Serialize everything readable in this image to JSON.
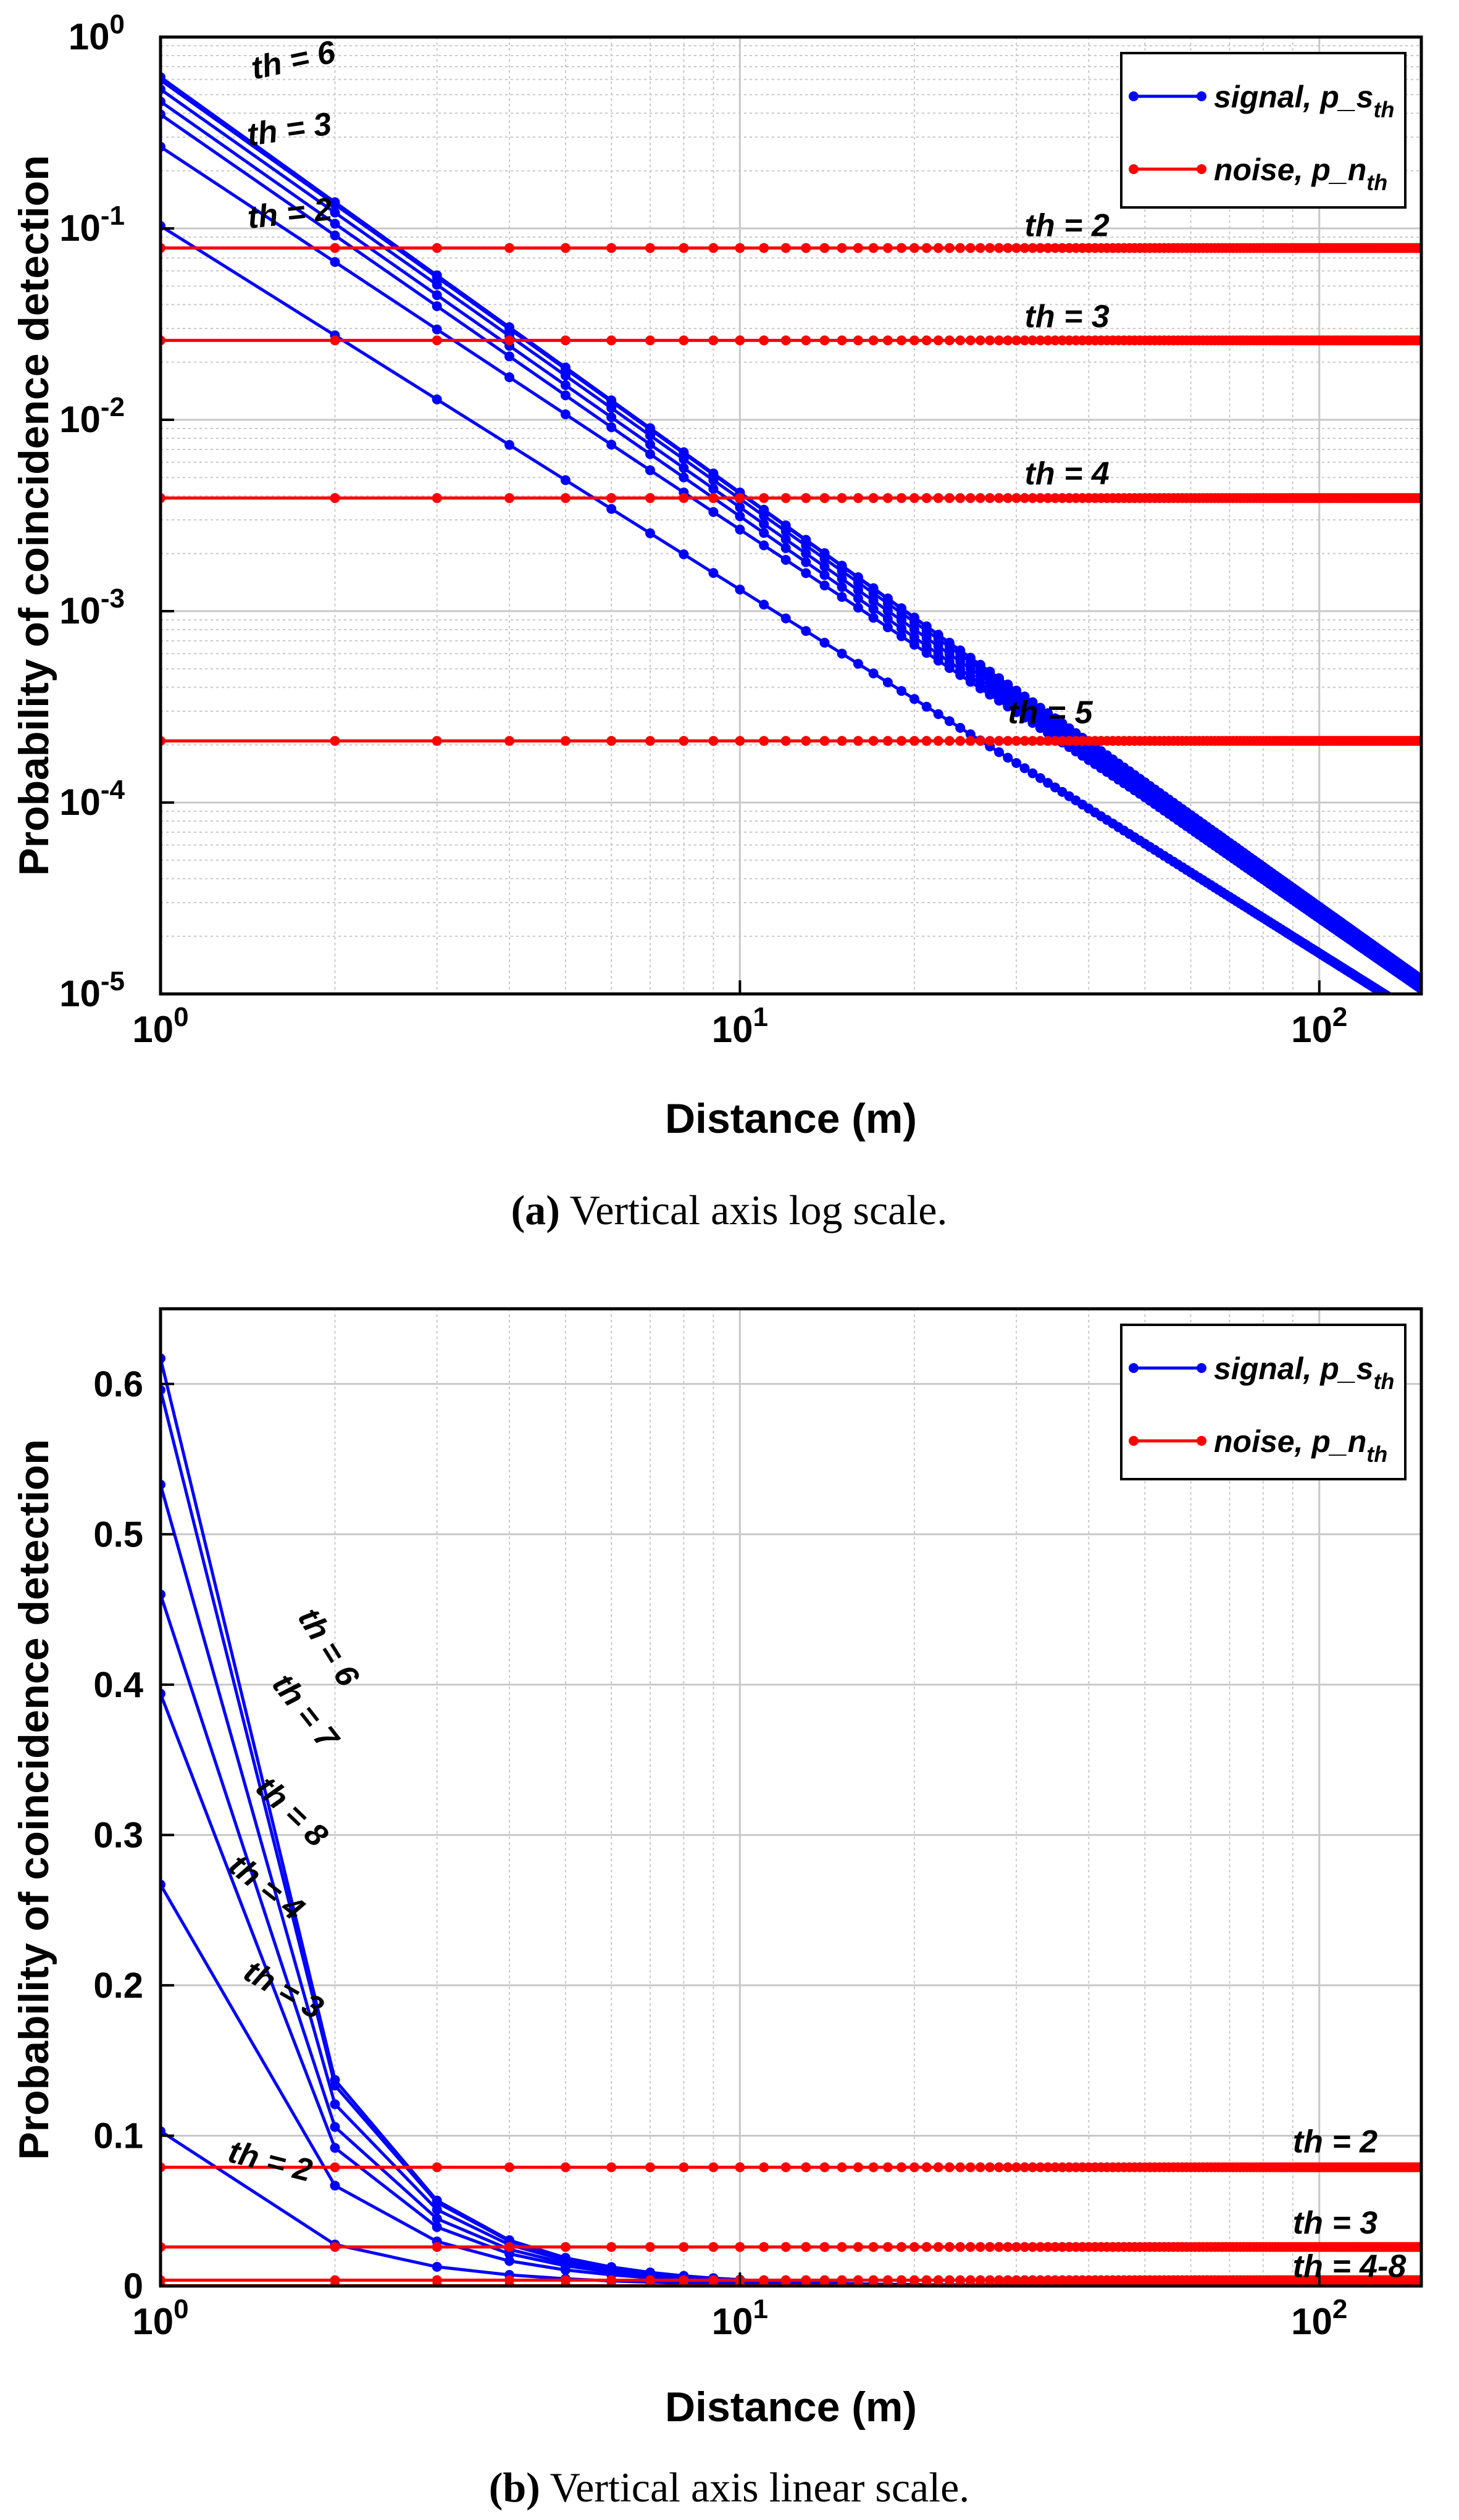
{
  "colors": {
    "signal": "#0000ff",
    "noise": "#ff0000",
    "grid": "#c8c8c8",
    "axis": "#000000"
  },
  "chart_data": [
    {
      "id": "a",
      "type": "line",
      "xscale": "log",
      "yscale": "log",
      "xlim": [
        1,
        150
      ],
      "ylim": [
        1e-05,
        1
      ],
      "xlabel": "Distance (m)",
      "ylabel": "Probability of coincidence detection",
      "xticks": [
        {
          "base": "10",
          "exp": "0",
          "v": 1
        },
        {
          "base": "10",
          "exp": "1",
          "v": 10
        },
        {
          "base": "10",
          "exp": "2",
          "v": 100
        }
      ],
      "yticks": [
        {
          "base": "10",
          "exp": "0",
          "v": 1
        },
        {
          "base": "10",
          "exp": "-1",
          "v": 0.1
        },
        {
          "base": "10",
          "exp": "-2",
          "v": 0.01
        },
        {
          "base": "10",
          "exp": "-3",
          "v": 0.001
        },
        {
          "base": "10",
          "exp": "-4",
          "v": 0.0001
        },
        {
          "base": "10",
          "exp": "-5",
          "v": 1e-05
        }
      ],
      "grid": true,
      "legend": {
        "position": "top-right",
        "entries": [
          {
            "kind": "signal",
            "text": "signal, p_s",
            "sub": "th"
          },
          {
            "kind": "noise",
            "text": "noise, p_n",
            "sub": "th"
          }
        ]
      },
      "series": [
        {
          "name": "signal th = 2",
          "kind": "signal",
          "th": 2,
          "p1": 0.103,
          "exp": 1.9
        },
        {
          "name": "signal th = 3",
          "kind": "signal",
          "th": 3,
          "p1": 0.267,
          "exp": 2.0
        },
        {
          "name": "signal th = 4",
          "kind": "signal",
          "th": 4,
          "p1": 0.394,
          "exp": 2.1
        },
        {
          "name": "signal th = 8",
          "kind": "signal",
          "th": 8,
          "p1": 0.46,
          "exp": 2.12
        },
        {
          "name": "signal th = 7",
          "kind": "signal",
          "th": 7,
          "p1": 0.533,
          "exp": 2.14
        },
        {
          "name": "signal th = 6",
          "kind": "signal",
          "th": 6,
          "p1": 0.596,
          "exp": 2.16
        },
        {
          "name": "signal th = 5",
          "kind": "signal",
          "th": 5,
          "p1": 0.617,
          "exp": 2.17
        },
        {
          "name": "noise th = 2",
          "kind": "noise",
          "th": 2,
          "value": 0.079
        },
        {
          "name": "noise th = 3",
          "kind": "noise",
          "th": 3,
          "value": 0.026
        },
        {
          "name": "noise th = 4",
          "kind": "noise",
          "th": 4,
          "value": 0.0039
        },
        {
          "name": "noise th = 5",
          "kind": "noise",
          "th": 5,
          "value": 0.00021
        }
      ],
      "annotations": [
        {
          "text": "th = 6",
          "x": 1.45,
          "y": 0.6,
          "rot": -12
        },
        {
          "text": "th = 3",
          "x": 1.42,
          "y": 0.27,
          "rot": -8
        },
        {
          "text": "th = 2",
          "x": 1.42,
          "y": 0.1,
          "rot": -6
        },
        {
          "text": "th = 2",
          "x": 31,
          "y": 0.091,
          "rot": 0
        },
        {
          "text": "th = 3",
          "x": 31,
          "y": 0.0305,
          "rot": 0
        },
        {
          "text": "th = 4",
          "x": 31,
          "y": 0.0046,
          "rot": 0
        },
        {
          "text": "th = 5",
          "x": 29,
          "y": 0.00026,
          "rot": 0
        }
      ],
      "caption_label": "(a)",
      "caption_text": "Vertical axis log scale."
    },
    {
      "id": "b",
      "type": "line",
      "xscale": "log",
      "yscale": "linear",
      "xlim": [
        1,
        150
      ],
      "ylim": [
        0,
        0.65
      ],
      "xlabel": "Distance (m)",
      "ylabel": "Probability of coincidence detection",
      "xticks": [
        {
          "base": "10",
          "exp": "0",
          "v": 1
        },
        {
          "base": "10",
          "exp": "1",
          "v": 10
        },
        {
          "base": "10",
          "exp": "2",
          "v": 100
        }
      ],
      "yticks": [
        {
          "text": "0",
          "v": 0
        },
        {
          "text": "0.1",
          "v": 0.1
        },
        {
          "text": "0.2",
          "v": 0.2
        },
        {
          "text": "0.3",
          "v": 0.3
        },
        {
          "text": "0.4",
          "v": 0.4
        },
        {
          "text": "0.5",
          "v": 0.5
        },
        {
          "text": "0.6",
          "v": 0.6
        }
      ],
      "grid": true,
      "legend": {
        "position": "top-right",
        "entries": [
          {
            "kind": "signal",
            "text": "signal, p_s",
            "sub": "th"
          },
          {
            "kind": "noise",
            "text": "noise, p_n",
            "sub": "th"
          }
        ]
      },
      "series": [
        {
          "name": "signal th = 2",
          "kind": "signal",
          "th": 2,
          "p1": 0.103,
          "exp": 1.9
        },
        {
          "name": "signal th = 3",
          "kind": "signal",
          "th": 3,
          "p1": 0.267,
          "exp": 2.0
        },
        {
          "name": "signal th = 4",
          "kind": "signal",
          "th": 4,
          "p1": 0.394,
          "exp": 2.1
        },
        {
          "name": "signal th = 8",
          "kind": "signal",
          "th": 8,
          "p1": 0.46,
          "exp": 2.12
        },
        {
          "name": "signal th = 7",
          "kind": "signal",
          "th": 7,
          "p1": 0.533,
          "exp": 2.14
        },
        {
          "name": "signal th = 6",
          "kind": "signal",
          "th": 6,
          "p1": 0.596,
          "exp": 2.16
        },
        {
          "name": "signal th = 5",
          "kind": "signal",
          "th": 5,
          "p1": 0.617,
          "exp": 2.17
        },
        {
          "name": "noise th = 2",
          "kind": "noise",
          "th": 2,
          "value": 0.079
        },
        {
          "name": "noise th = 3",
          "kind": "noise",
          "th": 3,
          "value": 0.026
        },
        {
          "name": "noise th = 4",
          "kind": "noise",
          "th": 4,
          "value": 0.0039
        },
        {
          "name": "noise th = 5",
          "kind": "noise",
          "th": 5,
          "value": 0.0002
        },
        {
          "name": "noise th = 6",
          "kind": "noise",
          "th": 6,
          "value": 0.0001
        },
        {
          "name": "noise th = 7",
          "kind": "noise",
          "th": 7,
          "value": 5e-05
        },
        {
          "name": "noise th = 8",
          "kind": "noise",
          "th": 8,
          "value": 2e-05
        }
      ],
      "annotations": [
        {
          "text": "th = 6",
          "x": 1.72,
          "y": 0.445,
          "rot": 58
        },
        {
          "text": "th = 7",
          "x": 1.55,
          "y": 0.4,
          "rot": 52
        },
        {
          "text": "th = 8",
          "x": 1.45,
          "y": 0.33,
          "rot": 44
        },
        {
          "text": "th = 4",
          "x": 1.3,
          "y": 0.277,
          "rot": 38
        },
        {
          "text": "th = 3",
          "x": 1.38,
          "y": 0.205,
          "rot": 30
        },
        {
          "text": "th = 2",
          "x": 1.3,
          "y": 0.083,
          "rot": 14
        },
        {
          "text": "th = 2",
          "x": 90,
          "y": 0.089,
          "rot": 0
        },
        {
          "text": "th = 3",
          "x": 90,
          "y": 0.035,
          "rot": 0
        },
        {
          "text": "th = 4-8",
          "x": 90,
          "y": 0.006,
          "rot": 0
        }
      ],
      "caption_label": "(b)",
      "caption_text": "Vertical axis linear scale."
    }
  ]
}
